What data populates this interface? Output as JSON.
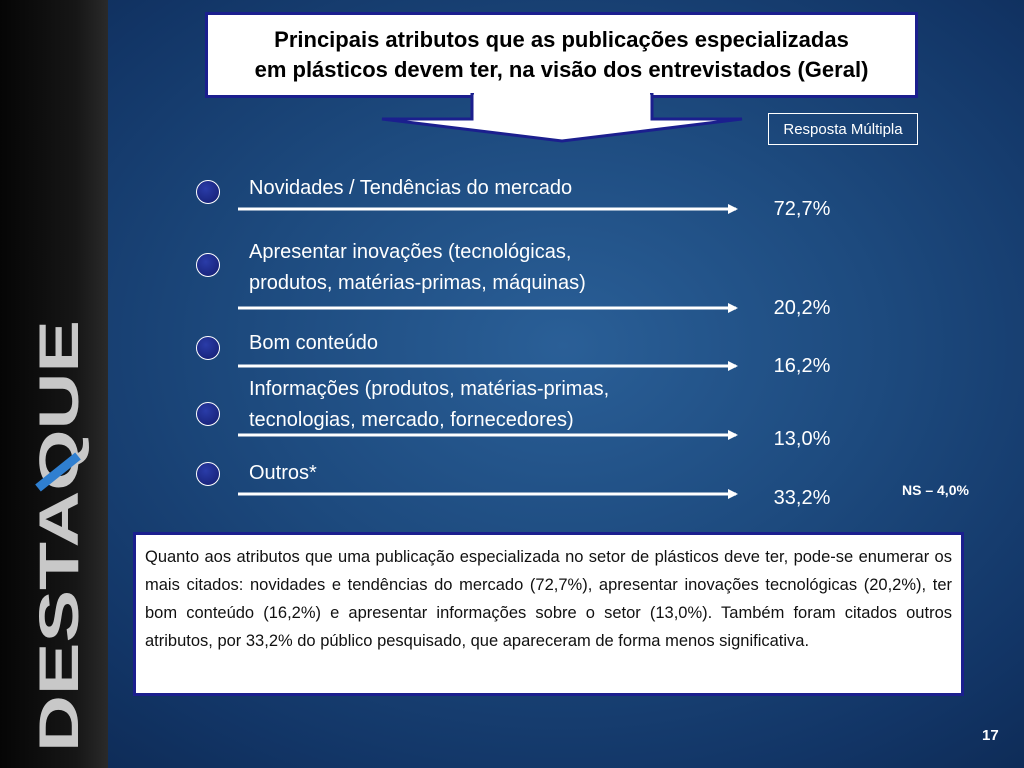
{
  "sidebar": {
    "logo_text": "DESTAQUE"
  },
  "title": {
    "line1": "Principais atributos que as publicações especializadas",
    "line2": "em plásticos devem ter, na visão dos entrevistados (Geral)"
  },
  "badge": "Resposta Múltipla",
  "items": [
    {
      "line1": "Novidades / Tendências do mercado",
      "line2": "",
      "value": "72,7%"
    },
    {
      "line1": "Apresentar inovações (tecnológicas,",
      "line2": "produtos, matérias-primas, máquinas)",
      "value": "20,2%"
    },
    {
      "line1": "Bom conteúdo",
      "line2": "",
      "value": "16,2%"
    },
    {
      "line1": "Informações (produtos, matérias-primas,",
      "line2": "tecnologias, mercado, fornecedores)",
      "value": "13,0%"
    },
    {
      "line1": "Outros*",
      "line2": "",
      "value": "33,2%"
    }
  ],
  "ns_note": "NS – 4,0%",
  "summary": "Quanto aos atributos que uma publicação especializada no setor de plásticos deve ter, pode-se enumerar os mais citados: novidades e tendências do mercado (72,7%), apresentar inovações tecnológicas (20,2%), ter bom conteúdo (16,2%) e apresentar informações sobre o setor (13,0%). Também foram citados outros atributos, por 33,2% do público pesquisado, que apareceram de forma menos significativa.",
  "page_number": "17",
  "colors": {
    "background": "#1d4a7e",
    "box_border": "#1b1f8e",
    "bullet": "#1a2680",
    "logo_grey": "#c8c8c8",
    "logo_accent": "#2f7fd0"
  }
}
